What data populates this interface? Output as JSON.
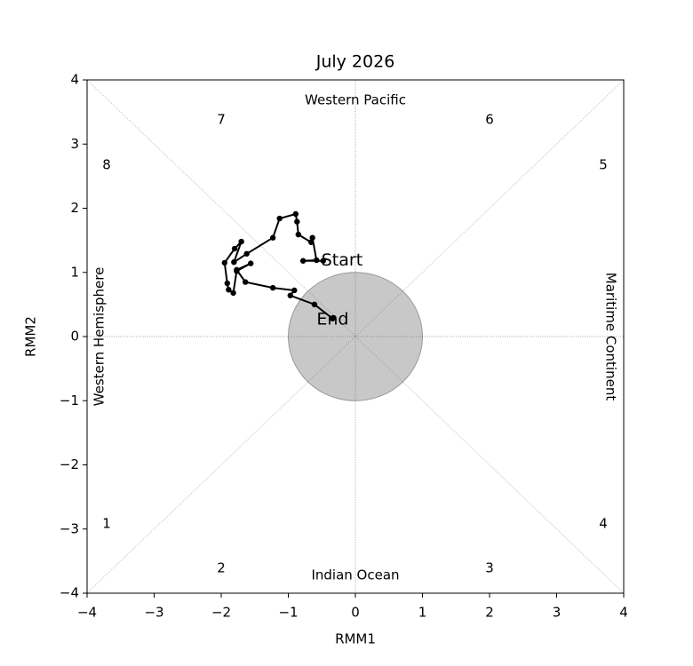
{
  "chart_data": {
    "type": "line",
    "title": "July 2026",
    "x_label": "RMM1",
    "y_label": "RMM2",
    "x": [
      -0.48,
      -0.78,
      -0.58,
      -0.64,
      -0.66,
      -0.85,
      -0.87,
      -0.89,
      -1.13,
      -1.23,
      -1.62,
      -1.81,
      -1.7,
      -1.8,
      -1.95,
      -1.91,
      -1.89,
      -1.82,
      -1.77,
      -1.56,
      -1.77,
      -1.64,
      -1.23,
      -0.91,
      -0.97,
      -0.61,
      -0.34
    ],
    "values": [
      1.18,
      1.18,
      1.19,
      1.54,
      1.47,
      1.59,
      1.79,
      1.91,
      1.84,
      1.54,
      1.29,
      1.16,
      1.48,
      1.37,
      1.15,
      0.83,
      0.73,
      0.68,
      1.02,
      1.14,
      1.04,
      0.85,
      0.76,
      0.72,
      0.64,
      0.5,
      0.28
    ],
    "color": "#000000",
    "start_label": "Start",
    "start_color": "#0000ff",
    "end_label": "End",
    "end_color": "#ff0000",
    "circle_radius": 1,
    "circle_color": "#c8c8c8",
    "xlim": [
      -4,
      4
    ],
    "ylim": [
      -4,
      4
    ],
    "xticks": [
      {
        "value": -4,
        "label": "−4"
      },
      {
        "value": -3,
        "label": "−3"
      },
      {
        "value": -2,
        "label": "−2"
      },
      {
        "value": -1,
        "label": "−1"
      },
      0,
      1,
      2,
      3,
      4
    ],
    "yticks": [
      {
        "value": -4,
        "label": "−4"
      },
      {
        "value": -3,
        "label": "−3"
      },
      {
        "value": -2,
        "label": "−2"
      },
      {
        "value": -1,
        "label": "−1"
      },
      0,
      1,
      2,
      3,
      4
    ],
    "regions": [
      "Western Pacific",
      "Indian Ocean",
      "Western Hemisphere",
      "Maritime Continent"
    ],
    "phases": [
      "1",
      "2",
      "3",
      "4",
      "5",
      "6",
      "7",
      "8"
    ]
  }
}
